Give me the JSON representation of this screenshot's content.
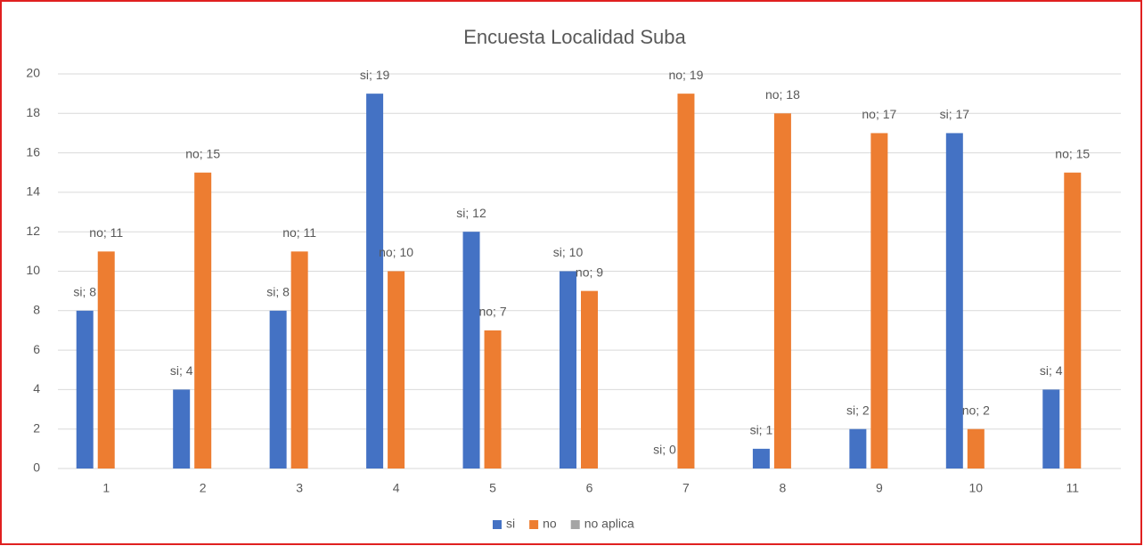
{
  "chart_data": {
    "type": "bar",
    "title": "Encuesta Localidad Suba",
    "categories": [
      "1",
      "2",
      "3",
      "4",
      "5",
      "6",
      "7",
      "8",
      "9",
      "10",
      "11"
    ],
    "series": [
      {
        "name": "si",
        "color": "#4472c4",
        "values": [
          8,
          4,
          8,
          19,
          12,
          10,
          0,
          1,
          2,
          17,
          4
        ],
        "value_labels": [
          "si; 8",
          "si; 4",
          "si; 8",
          "si; 19",
          "si; 12",
          "si; 10",
          "si; 0",
          "si; 1",
          "si; 2",
          "si; 17",
          "si; 4"
        ]
      },
      {
        "name": "no",
        "color": "#ed7d31",
        "values": [
          11,
          15,
          11,
          10,
          7,
          9,
          19,
          18,
          17,
          2,
          15
        ],
        "value_labels": [
          "no; 11",
          "no; 15",
          "no; 11",
          "no; 10",
          "no; 7",
          "no; 9",
          "no; 19",
          "no; 18",
          "no; 17",
          "no; 2",
          "no; 15"
        ]
      },
      {
        "name": "no aplica",
        "color": "#a5a5a5",
        "values": [
          null,
          null,
          null,
          null,
          null,
          null,
          null,
          null,
          null,
          null,
          null
        ]
      }
    ],
    "ylim": [
      0,
      20
    ],
    "yticks": [
      0,
      2,
      4,
      6,
      8,
      10,
      12,
      14,
      16,
      18,
      20
    ],
    "grid": true,
    "legend": "bottom"
  }
}
